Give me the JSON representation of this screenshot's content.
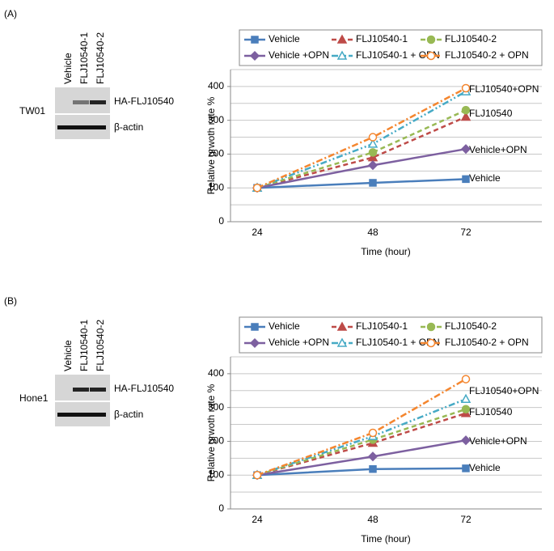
{
  "panels": [
    {
      "label": "(A)",
      "cell_line": "TW01",
      "lanes": [
        "Vehicle",
        "FLJ10540-1",
        "FLJ10540-2"
      ],
      "bands": [
        "HA-FLJ10540",
        "β-actin"
      ]
    },
    {
      "label": "(B)",
      "cell_line": "Hone1",
      "lanes": [
        "Vehicle",
        "FLJ10540-1",
        "FLJ10540-2"
      ],
      "bands": [
        "HA-FLJ10540",
        "β-actin"
      ]
    }
  ],
  "chart_data": [
    {
      "type": "line",
      "ylabel": "Relative grwoth rate %",
      "xlabel": "Time (hour)",
      "categories": [
        "24",
        "48",
        "72"
      ],
      "ylim": [
        0,
        450
      ],
      "yticks": [
        0,
        100,
        200,
        300,
        400
      ],
      "yminor": [
        50,
        150,
        250,
        350,
        450
      ],
      "grid": true,
      "annotations": [
        "FLJ10540+OPN",
        "FLJ10540",
        "Vehicle+OPN",
        "Vehicle"
      ],
      "series": [
        {
          "name": "Vehicle",
          "color": "#4a7ebb",
          "marker": "square",
          "dash": "solid",
          "values": [
            100,
            115,
            126
          ]
        },
        {
          "name": "FLJ10540-1",
          "color": "#be4b48",
          "marker": "triangle",
          "dash": "dash",
          "values": [
            100,
            190,
            310
          ]
        },
        {
          "name": "FLJ10540-2",
          "color": "#98b954",
          "marker": "circle",
          "dash": "dash",
          "values": [
            100,
            205,
            330
          ]
        },
        {
          "name": "Vehicle +OPN",
          "color": "#7d60a0",
          "marker": "diamond",
          "dash": "solid",
          "values": [
            100,
            167,
            215
          ]
        },
        {
          "name": "FLJ10540-1 + OPN",
          "color": "#46aac5",
          "marker": "open-triangle",
          "dash": "dashdotdot",
          "values": [
            100,
            230,
            385
          ]
        },
        {
          "name": "FLJ10540-2 + OPN",
          "color": "#f4862f",
          "marker": "open-circle",
          "dash": "dashdot",
          "values": [
            100,
            250,
            395
          ]
        }
      ]
    },
    {
      "type": "line",
      "ylabel": "Relative grwoth rate %",
      "xlabel": "Time (hour)",
      "categories": [
        "24",
        "48",
        "72"
      ],
      "ylim": [
        0,
        450
      ],
      "yticks": [
        0,
        100,
        200,
        300,
        400
      ],
      "yminor": [
        50,
        150,
        250,
        350,
        450
      ],
      "grid": true,
      "annotations": [
        "FLJ10540+OPN",
        "FLJ10540",
        "Vehicle+OPN",
        "Vehicle"
      ],
      "series": [
        {
          "name": "Vehicle",
          "color": "#4a7ebb",
          "marker": "square",
          "dash": "solid",
          "values": [
            100,
            118,
            120
          ]
        },
        {
          "name": "FLJ10540-1",
          "color": "#be4b48",
          "marker": "triangle",
          "dash": "dash",
          "values": [
            100,
            195,
            283
          ]
        },
        {
          "name": "FLJ10540-2",
          "color": "#98b954",
          "marker": "circle",
          "dash": "dash",
          "values": [
            100,
            205,
            295
          ]
        },
        {
          "name": "Vehicle +OPN",
          "color": "#7d60a0",
          "marker": "diamond",
          "dash": "solid",
          "values": [
            100,
            155,
            203
          ]
        },
        {
          "name": "FLJ10540-1 + OPN",
          "color": "#46aac5",
          "marker": "open-triangle",
          "dash": "dashdotdot",
          "values": [
            100,
            215,
            325
          ]
        },
        {
          "name": "FLJ10540-2 + OPN",
          "color": "#f4862f",
          "marker": "open-circle",
          "dash": "dashdot",
          "values": [
            100,
            225,
            384
          ]
        }
      ]
    }
  ]
}
